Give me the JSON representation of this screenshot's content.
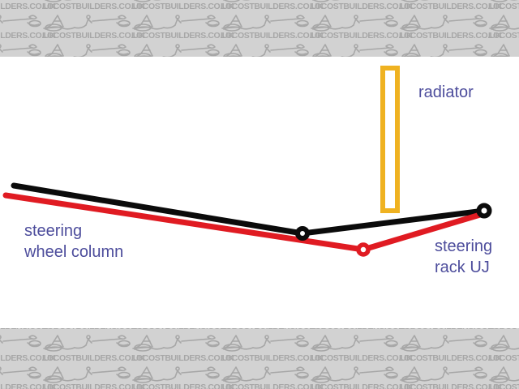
{
  "watermark": {
    "text": "LOCOSTBUILDERS.CO.UK",
    "icon": "locost-kit-car-sketch-icon"
  },
  "diagram": {
    "labels": {
      "radiator": "radiator",
      "steering_wheel_column": "steering\nwheel column",
      "steering_rack_uj": "steering\nrack UJ"
    }
  },
  "colors": {
    "band-bg": "#d2d2d2",
    "watermark-ink": "#a7a7a7",
    "line-black": "#0b0b0b",
    "line-red": "#e01b22",
    "radiator-yellow": "#efb221",
    "label-ink": "#4d4d9c",
    "canvas-bg": "#ffffff"
  }
}
